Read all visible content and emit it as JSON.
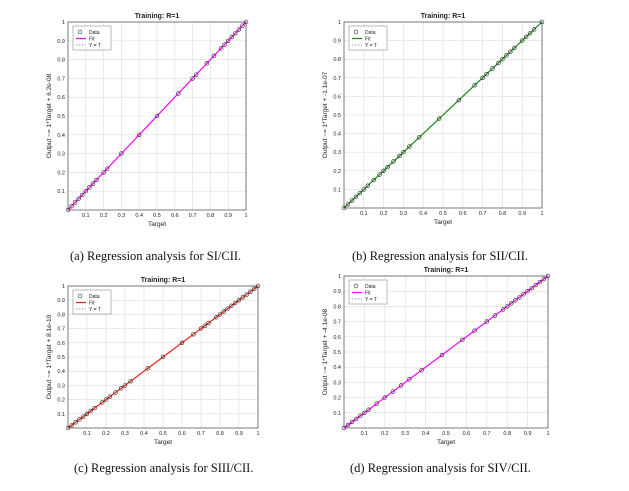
{
  "chart_data": [
    {
      "type": "scatter",
      "title": "Training: R=1",
      "xlabel": "Target",
      "ylabel": "Output ~= 1*Target + 6.2e-08",
      "xlim": [
        0,
        1
      ],
      "ylim": [
        0,
        1
      ],
      "xticks": [
        "0.1",
        "0.2",
        "0.3",
        "0.4",
        "0.5",
        "0.6",
        "0.7",
        "0.8",
        "0.9",
        "1"
      ],
      "yticks": [
        "0.1",
        "0.2",
        "0.3",
        "0.4",
        "0.5",
        "0.6",
        "0.7",
        "0.8",
        "0.9",
        "1"
      ],
      "grid": true,
      "legend": [
        "Data",
        "Fit",
        "Y = T"
      ],
      "legend_position": "top-left",
      "fit_color": "#ff00ff",
      "data_x": [
        0.0,
        0.02,
        0.04,
        0.06,
        0.08,
        0.1,
        0.12,
        0.14,
        0.16,
        0.2,
        0.22,
        0.3,
        0.4,
        0.5,
        0.62,
        0.7,
        0.72,
        0.78,
        0.82,
        0.86,
        0.88,
        0.9,
        0.92,
        0.94,
        0.96,
        0.98,
        1.0
      ],
      "caption": "(a) Regression analysis for  SI/CII."
    },
    {
      "type": "scatter",
      "title": "Training: R=1",
      "xlabel": "Target",
      "ylabel": "Output ~= 1*Target + -1.1e-07",
      "xlim": [
        0,
        1
      ],
      "ylim": [
        0,
        1
      ],
      "xticks": [
        "0.1",
        "0.2",
        "0.3",
        "0.4",
        "0.5",
        "0.6",
        "0.7",
        "0.8",
        "0.9",
        "1"
      ],
      "yticks": [
        "0.1",
        "0.2",
        "0.3",
        "0.4",
        "0.5",
        "0.6",
        "0.7",
        "0.8",
        "0.9",
        "1"
      ],
      "grid": true,
      "legend": [
        "Data",
        "Fit",
        "Y = T"
      ],
      "legend_position": "top-left",
      "fit_color": "#1a8a1a",
      "data_x": [
        0.0,
        0.02,
        0.04,
        0.06,
        0.08,
        0.1,
        0.12,
        0.15,
        0.18,
        0.2,
        0.22,
        0.25,
        0.28,
        0.3,
        0.33,
        0.38,
        0.48,
        0.58,
        0.66,
        0.7,
        0.72,
        0.75,
        0.78,
        0.8,
        0.82,
        0.84,
        0.86,
        0.9,
        0.92,
        0.94,
        0.96,
        1.0
      ],
      "caption": "(b) Regression analysis for  SII/CII."
    },
    {
      "type": "scatter",
      "title": "Training: R=1",
      "xlabel": "Target",
      "ylabel": "Output ~= 1*Target + 8.1e-10",
      "xlim": [
        0,
        1
      ],
      "ylim": [
        0,
        1
      ],
      "xticks": [
        "0.1",
        "0.2",
        "0.3",
        "0.4",
        "0.5",
        "0.6",
        "0.7",
        "0.8",
        "0.9",
        "1"
      ],
      "yticks": [
        "0.1",
        "0.2",
        "0.3",
        "0.4",
        "0.5",
        "0.6",
        "0.7",
        "0.8",
        "0.9",
        "1"
      ],
      "grid": true,
      "legend": [
        "Data",
        "Fit",
        "Y = T"
      ],
      "legend_position": "top-left",
      "fit_color": "#e8201c",
      "data_x": [
        0.0,
        0.02,
        0.04,
        0.06,
        0.08,
        0.1,
        0.12,
        0.14,
        0.18,
        0.2,
        0.22,
        0.25,
        0.28,
        0.3,
        0.33,
        0.42,
        0.5,
        0.6,
        0.66,
        0.7,
        0.72,
        0.74,
        0.78,
        0.8,
        0.82,
        0.84,
        0.86,
        0.88,
        0.9,
        0.92,
        0.94,
        0.96,
        0.98,
        1.0
      ],
      "caption": "(c) Regression analysis for  SIII/CII."
    },
    {
      "type": "scatter",
      "title": "Training: R=1",
      "xlabel": "Target",
      "ylabel": "Output ~= 1*Target + -4.1e-08",
      "xlim": [
        0,
        1
      ],
      "ylim": [
        0,
        1
      ],
      "xticks": [
        "0.1",
        "0.2",
        "0.3",
        "0.4",
        "0.5",
        "0.6",
        "0.7",
        "0.8",
        "0.9",
        "1"
      ],
      "yticks": [
        "0.1",
        "0.2",
        "0.3",
        "0.4",
        "0.5",
        "0.6",
        "0.7",
        "0.8",
        "0.9",
        "1"
      ],
      "grid": true,
      "legend": [
        "Data",
        "Fit",
        "Y = T"
      ],
      "legend_position": "top-left",
      "fit_color": "#ff00ff",
      "data_x": [
        0.0,
        0.02,
        0.04,
        0.06,
        0.08,
        0.1,
        0.12,
        0.16,
        0.2,
        0.24,
        0.28,
        0.32,
        0.38,
        0.48,
        0.58,
        0.64,
        0.7,
        0.74,
        0.78,
        0.8,
        0.82,
        0.84,
        0.86,
        0.88,
        0.9,
        0.92,
        0.94,
        0.96,
        0.98,
        1.0
      ],
      "caption": "(d) Regression analysis for  SIV/CII."
    }
  ]
}
